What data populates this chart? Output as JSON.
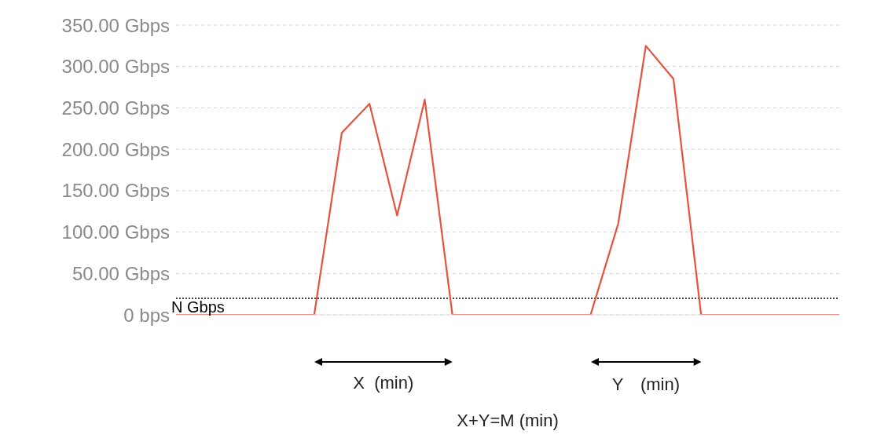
{
  "chart_data": {
    "type": "line",
    "categories": [
      null,
      null,
      null,
      null,
      null,
      null,
      null,
      null,
      null,
      null,
      null,
      null,
      null,
      null,
      null,
      null,
      null,
      null,
      null,
      null,
      null,
      null,
      null,
      null,
      null
    ],
    "series": [
      {
        "color": "#e5533f",
        "values": [
          0,
          0,
          0,
          0,
          0,
          0,
          220,
          255,
          120,
          260,
          0,
          0,
          0,
          0,
          0,
          0,
          110,
          325,
          285,
          0,
          0,
          0,
          0,
          0,
          0
        ]
      }
    ],
    "ylim": [
      0,
      350
    ],
    "yticks": [
      {
        "value": 0,
        "label": "0 bps"
      },
      {
        "value": 50,
        "label": "50.00 Gbps"
      },
      {
        "value": 100,
        "label": "100.00 Gbps"
      },
      {
        "value": 150,
        "label": "150.00 Gbps"
      },
      {
        "value": 200,
        "label": "200.00 Gbps"
      },
      {
        "value": 250,
        "label": "250.00 Gbps"
      },
      {
        "value": 300,
        "label": "300.00 Gbps"
      },
      {
        "value": 350,
        "label": "350.00 Gbps"
      }
    ],
    "tick_labels": "y",
    "grid": "y",
    "marker": "none",
    "line_style": "solid",
    "ref_lines": [
      {
        "axis": "y",
        "value": 20,
        "label": "N Gbps",
        "color": "#000000",
        "line_style": "dotted"
      }
    ],
    "annotations": [
      "X  (min)",
      "Y　(min)",
      "X+Y=M (min)"
    ]
  }
}
